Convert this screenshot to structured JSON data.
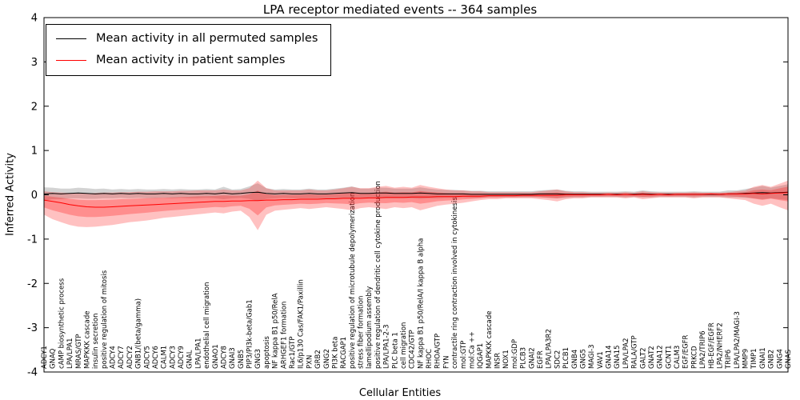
{
  "chart_data": {
    "type": "line",
    "title": "LPA receptor mediated events -- 364 samples",
    "xlabel": "Cellular Entities",
    "ylabel": "Inferred Activity",
    "ylim": [
      -4,
      4
    ],
    "yticks": [
      -4,
      -3,
      -2,
      -1,
      0,
      1,
      2,
      3,
      4
    ],
    "grid": false,
    "legend": {
      "position": "upper left",
      "entries": [
        {
          "label": "Mean activity in all permuted samples",
          "color": "#000000"
        },
        {
          "label": "Mean activity in patient samples",
          "color": "#ff0000"
        }
      ]
    },
    "band_colors": {
      "permuted": "#777777",
      "patient": "#ff2222"
    },
    "categories": [
      "ADCY1",
      "GNAQ",
      "cAMP biosynthetic process",
      "LPA/LPA1",
      "MRAS/GTP",
      "MAPKKK cascade",
      "insulin secretion",
      "positive regulation of mitosis",
      "ADCY4",
      "ADCY7",
      "ADCY2",
      "GNB1/(beta/gamma)",
      "ADCY5",
      "ADCY6",
      "CALM1",
      "ADCY3",
      "ADCY9",
      "GNAL",
      "LPA/LPA1",
      "endothelial cell migration",
      "GNAO1",
      "ADCY8",
      "GNAI3",
      "GNB5",
      "PIP3/PI3k-beta/Gab1",
      "GNG3",
      "apoptosis",
      "NF kappa B1 p50/RelA",
      "ARHGEF1 formation",
      "Rac1/GTP",
      "IL6/p130 Cas/FAK1/Paxillin",
      "PXN",
      "GRB2",
      "GNG2",
      "PI3K beta",
      "RACGAP1",
      "positive regulation of microtubule depolymerization",
      "stress fiber formation",
      "lamellipodium assembly",
      "positive regulation of dendritic cell cytokine production",
      "LPA/LPA1-2-3",
      "PLC beta 1",
      "cell migration",
      "CDC42/GTP",
      "NF kappa B1 p50/RelA/I kappa B alpha",
      "RHOC",
      "RHOA/GTP",
      "FYN",
      "contractile ring contraction involved in cytokinesis",
      "mol:GTP",
      "mol:Ca ++",
      "IQGAP1",
      "MAPKKK cascade",
      "INSR",
      "NOX1",
      "mol:GDP",
      "PLCB3",
      "GNAI2",
      "EGFR",
      "LPA/LPA3R2",
      "SDC2",
      "PLCB1",
      "GNB4",
      "GNG5",
      "MAGI-3",
      "VAV1",
      "GNA14",
      "GNA15",
      "LPA/LPA2",
      "RALA/GTP",
      "GALT2",
      "GNAT2",
      "GNA12",
      "GCNT1",
      "CALM3",
      "EGF/EGFR",
      "PRKCD",
      "LPA2/TRIP6",
      "HB-EGF/EGFR",
      "LPA2/NHERF2",
      "TRIP6",
      "LPA/LPA2/MAGI-3",
      "MMP9",
      "TIMP1",
      "GNAI1",
      "GNB2",
      "GNG4",
      "GNAS"
    ],
    "series": [
      {
        "name": "Mean activity in all permuted samples",
        "color": "#000000",
        "values": [
          0.02,
          0.03,
          0.02,
          0.03,
          0.04,
          0.03,
          0.02,
          0.03,
          0.02,
          0.03,
          0.02,
          0.03,
          0.02,
          0.02,
          0.03,
          0.02,
          0.03,
          0.02,
          0.02,
          0.03,
          0.02,
          0.04,
          0.02,
          0.03,
          0.05,
          0.06,
          0.03,
          0.02,
          0.03,
          0.02,
          0.02,
          0.03,
          0.02,
          0.02,
          0.03,
          0.04,
          0.05,
          0.03,
          0.03,
          0.04,
          0.04,
          0.03,
          0.03,
          0.03,
          0.04,
          0.03,
          0.02,
          0.02,
          0.02,
          0.02,
          0.01,
          0.01,
          0.01,
          0.01,
          0.01,
          0.01,
          0.01,
          0.01,
          0.02,
          0.02,
          0.02,
          0.01,
          0.01,
          0.01,
          0.01,
          0.01,
          0.01,
          0.01,
          0.01,
          0.01,
          0.02,
          0.01,
          0.01,
          0.01,
          0.01,
          0.01,
          0.01,
          0.01,
          0.01,
          0.01,
          0.02,
          0.02,
          0.03,
          0.04,
          0.05,
          0.04,
          0.05,
          0.06
        ],
        "lower": [
          -0.13,
          -0.1,
          -0.1,
          -0.08,
          -0.08,
          -0.09,
          -0.09,
          -0.08,
          -0.08,
          -0.07,
          -0.08,
          -0.07,
          -0.08,
          -0.08,
          -0.07,
          -0.08,
          -0.07,
          -0.08,
          -0.08,
          -0.07,
          -0.08,
          -0.1,
          -0.08,
          -0.07,
          -0.09,
          -0.14,
          -0.09,
          -0.08,
          -0.07,
          -0.08,
          -0.08,
          -0.08,
          -0.08,
          -0.08,
          -0.08,
          -0.08,
          -0.09,
          -0.08,
          -0.08,
          -0.08,
          -0.08,
          -0.08,
          -0.08,
          -0.08,
          -0.09,
          -0.08,
          -0.08,
          -0.07,
          -0.07,
          -0.06,
          -0.07,
          -0.07,
          -0.06,
          -0.06,
          -0.06,
          -0.06,
          -0.06,
          -0.06,
          -0.06,
          -0.07,
          -0.08,
          -0.07,
          -0.06,
          -0.06,
          -0.05,
          -0.05,
          -0.05,
          -0.05,
          -0.06,
          -0.05,
          -0.06,
          -0.06,
          -0.05,
          -0.05,
          -0.05,
          -0.05,
          -0.06,
          -0.05,
          -0.05,
          -0.05,
          -0.06,
          -0.06,
          -0.07,
          -0.08,
          -0.1,
          -0.08,
          -0.1,
          -0.12
        ],
        "upper": [
          0.17,
          0.16,
          0.14,
          0.14,
          0.16,
          0.15,
          0.13,
          0.14,
          0.12,
          0.13,
          0.12,
          0.13,
          0.12,
          0.12,
          0.13,
          0.12,
          0.13,
          0.12,
          0.12,
          0.13,
          0.12,
          0.18,
          0.12,
          0.13,
          0.19,
          0.26,
          0.15,
          0.12,
          0.13,
          0.12,
          0.12,
          0.14,
          0.12,
          0.12,
          0.14,
          0.16,
          0.19,
          0.14,
          0.14,
          0.16,
          0.16,
          0.14,
          0.14,
          0.14,
          0.17,
          0.14,
          0.12,
          0.11,
          0.11,
          0.1,
          0.09,
          0.09,
          0.08,
          0.08,
          0.08,
          0.08,
          0.08,
          0.08,
          0.1,
          0.11,
          0.12,
          0.09,
          0.08,
          0.08,
          0.07,
          0.07,
          0.07,
          0.07,
          0.08,
          0.07,
          0.1,
          0.08,
          0.07,
          0.07,
          0.07,
          0.07,
          0.08,
          0.07,
          0.07,
          0.07,
          0.1,
          0.1,
          0.13,
          0.16,
          0.2,
          0.16,
          0.2,
          0.24
        ]
      },
      {
        "name": "Mean activity in patient samples",
        "color": "#ff0000",
        "values": [
          -0.12,
          -0.15,
          -0.18,
          -0.22,
          -0.25,
          -0.27,
          -0.28,
          -0.28,
          -0.27,
          -0.26,
          -0.25,
          -0.24,
          -0.23,
          -0.22,
          -0.21,
          -0.2,
          -0.19,
          -0.18,
          -0.17,
          -0.16,
          -0.15,
          -0.15,
          -0.14,
          -0.14,
          -0.13,
          -0.13,
          -0.12,
          -0.12,
          -0.11,
          -0.11,
          -0.1,
          -0.1,
          -0.1,
          -0.09,
          -0.09,
          -0.08,
          -0.08,
          -0.08,
          -0.07,
          -0.07,
          -0.06,
          -0.06,
          -0.06,
          -0.05,
          -0.05,
          -0.05,
          -0.04,
          -0.04,
          -0.04,
          -0.03,
          -0.03,
          -0.03,
          -0.02,
          -0.02,
          -0.02,
          -0.02,
          -0.01,
          -0.01,
          -0.01,
          -0.01,
          -0.01,
          0,
          0,
          0,
          0,
          0,
          0.01,
          0,
          0.01,
          0,
          0.01,
          0,
          0.01,
          0,
          0.01,
          0.01,
          0.01,
          0.01,
          0.02,
          0.01,
          0.02,
          0.02,
          0.02,
          0.03,
          0.02,
          0.03,
          0.04,
          0.05
        ],
        "lower": [
          -0.45,
          -0.55,
          -0.62,
          -0.68,
          -0.72,
          -0.73,
          -0.72,
          -0.7,
          -0.68,
          -0.65,
          -0.62,
          -0.6,
          -0.58,
          -0.55,
          -0.52,
          -0.5,
          -0.48,
          -0.46,
          -0.44,
          -0.42,
          -0.4,
          -0.42,
          -0.38,
          -0.36,
          -0.5,
          -0.8,
          -0.45,
          -0.36,
          -0.34,
          -0.32,
          -0.3,
          -0.32,
          -0.3,
          -0.28,
          -0.3,
          -0.32,
          -0.35,
          -0.3,
          -0.28,
          -0.3,
          -0.32,
          -0.28,
          -0.3,
          -0.28,
          -0.35,
          -0.3,
          -0.25,
          -0.22,
          -0.2,
          -0.18,
          -0.15,
          -0.12,
          -0.1,
          -0.1,
          -0.08,
          -0.08,
          -0.08,
          -0.08,
          -0.1,
          -0.12,
          -0.15,
          -0.1,
          -0.08,
          -0.08,
          -0.06,
          -0.06,
          -0.06,
          -0.06,
          -0.08,
          -0.06,
          -0.1,
          -0.08,
          -0.06,
          -0.06,
          -0.06,
          -0.06,
          -0.08,
          -0.06,
          -0.06,
          -0.06,
          -0.08,
          -0.1,
          -0.12,
          -0.2,
          -0.25,
          -0.2,
          -0.28,
          -0.35
        ],
        "upper": [
          0.08,
          0.06,
          0.05,
          0.04,
          0.03,
          0.03,
          0.04,
          0.05,
          0.05,
          0.06,
          0.06,
          0.07,
          0.07,
          0.08,
          0.08,
          0.08,
          0.09,
          0.09,
          0.1,
          0.1,
          0.1,
          0.12,
          0.1,
          0.1,
          0.15,
          0.32,
          0.15,
          0.1,
          0.1,
          0.1,
          0.1,
          0.12,
          0.1,
          0.1,
          0.12,
          0.15,
          0.18,
          0.15,
          0.15,
          0.18,
          0.2,
          0.16,
          0.18,
          0.16,
          0.22,
          0.18,
          0.15,
          0.12,
          0.1,
          0.1,
          0.08,
          0.08,
          0.06,
          0.06,
          0.06,
          0.06,
          0.06,
          0.06,
          0.08,
          0.1,
          0.12,
          0.08,
          0.06,
          0.06,
          0.05,
          0.05,
          0.05,
          0.05,
          0.06,
          0.05,
          0.08,
          0.06,
          0.05,
          0.05,
          0.05,
          0.05,
          0.06,
          0.05,
          0.05,
          0.05,
          0.06,
          0.08,
          0.1,
          0.18,
          0.22,
          0.18,
          0.25,
          0.32
        ]
      }
    ]
  }
}
